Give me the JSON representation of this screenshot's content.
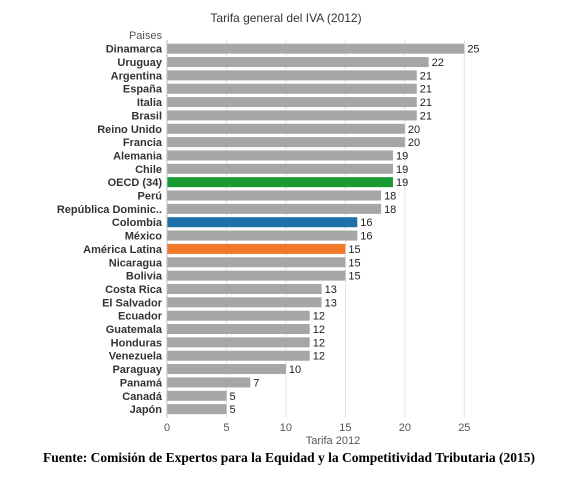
{
  "source_note": "Fuente: Comisión de Expertos para la Equidad y la Competitividad Tributaria (2015)",
  "chart_data": {
    "type": "bar",
    "orientation": "horizontal",
    "title": "Tarifa general del IVA (2012)",
    "category_header": "Paises",
    "xlabel": "Tarifa 2012",
    "xlim": [
      0,
      28
    ],
    "xticks": [
      0,
      5,
      10,
      15,
      20,
      25
    ],
    "grid": "vertical",
    "categories": [
      "Dinamarca",
      "Uruguay",
      "Argentina",
      "España",
      "Italia",
      "Brasil",
      "Reino Unido",
      "Francia",
      "Alemania",
      "Chile",
      "OECD (34)",
      "Perú",
      "República Dominic..",
      "Colombia",
      "México",
      "América Latina",
      "Nicaragua",
      "Bolivia",
      "Costa Rica",
      "El Salvador",
      "Ecuador",
      "Guatemala",
      "Honduras",
      "Venezuela",
      "Paraguay",
      "Panamá",
      "Canadá",
      "Japón"
    ],
    "values": [
      25,
      22,
      21,
      21,
      21,
      21,
      20,
      20,
      19,
      19,
      19,
      18,
      18,
      16,
      16,
      15,
      15,
      15,
      13,
      13,
      12,
      12,
      12,
      12,
      10,
      7,
      5,
      5
    ],
    "colors": {
      "default": "#a6a6a6",
      "OECD (34)": "#1a9a32",
      "Colombia": "#1f6fa8",
      "América Latina": "#f0782a"
    }
  }
}
